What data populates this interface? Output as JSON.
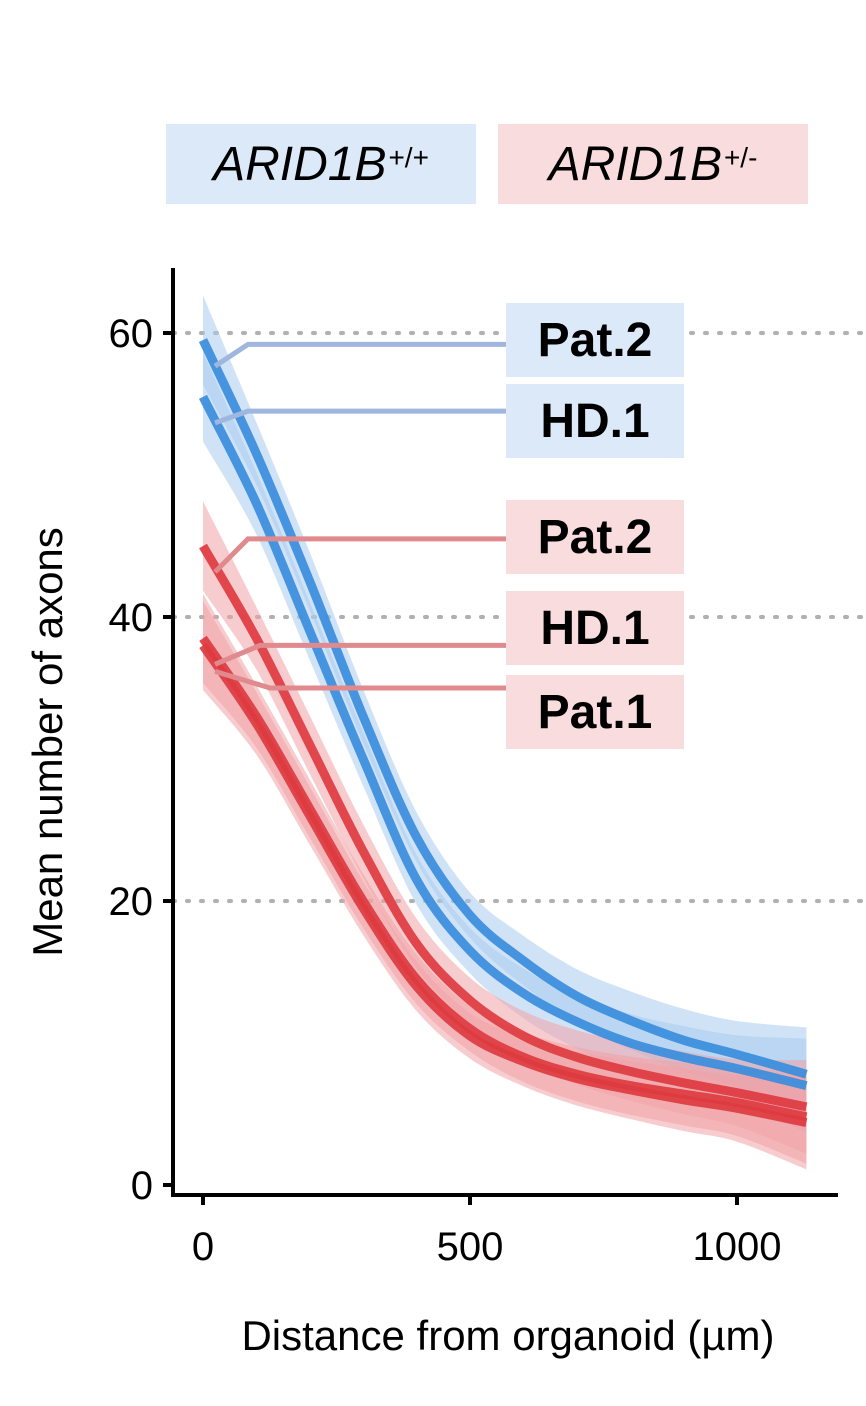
{
  "legend": {
    "wildtype": {
      "gene": "ARID1B",
      "genotype": "+/+",
      "color": "#dce9f8"
    },
    "heterozygous": {
      "gene": "ARID1B",
      "genotype": "+/-",
      "color": "#f8dcde"
    }
  },
  "chart_data": {
    "type": "line",
    "xlabel": "Distance from organoid (µm)",
    "ylabel": "Mean number of axons",
    "xlim": [
      -60,
      1190
    ],
    "ylim": [
      0,
      65
    ],
    "x_ticks": [
      0,
      500,
      1000
    ],
    "y_ticks": [
      0,
      20,
      40,
      60
    ],
    "gridlines_y": [
      20,
      40,
      60
    ],
    "x": [
      0,
      100,
      200,
      300,
      400,
      500,
      600,
      700,
      800,
      900,
      1000,
      1130
    ],
    "series": [
      {
        "name": "Pat.2",
        "group": "ARID1B+/+",
        "label_y": 59.2,
        "color": "#3a8ddc",
        "band_color": "#a9ccef",
        "values": [
          59.5,
          51.5,
          42.5,
          33,
          24.5,
          19,
          15.8,
          13.3,
          11.6,
          10.2,
          9.2,
          7.8
        ]
      },
      {
        "name": "HD.1",
        "group": "ARID1B+/+",
        "label_y": 54.5,
        "color": "#3a8ddc",
        "band_color": "#a9ccef",
        "values": [
          55.5,
          48,
          39,
          30,
          21.5,
          16.5,
          13.5,
          11.5,
          10,
          9,
          8.2,
          7
        ]
      },
      {
        "name": "Pat.2",
        "group": "ARID1B+/-",
        "label_y": 45.5,
        "color": "#dd3b40",
        "band_color": "#f0a3a6",
        "values": [
          45,
          38.5,
          31,
          23.5,
          17,
          13,
          10.5,
          9,
          8,
          7.2,
          6.5,
          5.5
        ]
      },
      {
        "name": "HD.1",
        "group": "ARID1B+/-",
        "label_y": 38,
        "color": "#dd3b40",
        "band_color": "#f0a3a6",
        "values": [
          38.5,
          33,
          26.5,
          20,
          14.5,
          11,
          9,
          7.8,
          7,
          6.4,
          5.8,
          4.8
        ]
      },
      {
        "name": "Pat.1",
        "group": "ARID1B+/-",
        "label_y": 35,
        "color": "#dd3b40",
        "band_color": "#f0a3a6",
        "values": [
          38,
          32.5,
          26,
          19.5,
          14,
          10.5,
          8.7,
          7.5,
          6.7,
          6,
          5.4,
          4.4
        ]
      }
    ]
  }
}
